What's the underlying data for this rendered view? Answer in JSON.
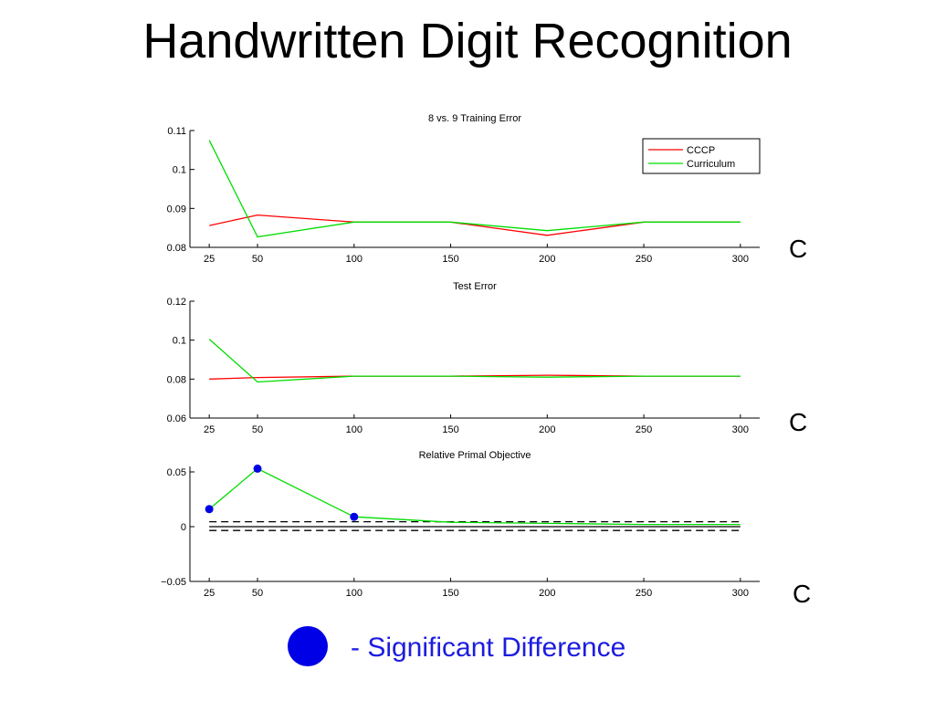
{
  "slide": {
    "title": "Handwritten Digit Recognition",
    "c_labels": [
      "C",
      "C",
      "C"
    ],
    "legend_note": "- Significant Difference",
    "legend_marker_color": "#0000e6"
  },
  "chart_data": [
    {
      "type": "line",
      "title": "8 vs. 9 Training Error",
      "x": [
        25,
        50,
        100,
        150,
        200,
        250,
        300
      ],
      "xticks": [
        "25",
        "50",
        "100",
        "150",
        "200",
        "250",
        "300"
      ],
      "ylim": [
        0.08,
        0.11
      ],
      "yticks": [
        "0.08",
        "0.09",
        "0.1",
        "0.11"
      ],
      "legend": {
        "placement": "top-right",
        "entries": [
          "CCCP",
          "Curriculum"
        ]
      },
      "series": [
        {
          "name": "CCCP",
          "color": "#ff0000",
          "values": [
            0.0856,
            0.0883,
            0.0865,
            0.0865,
            0.0831,
            0.0865,
            0.0865
          ]
        },
        {
          "name": "Curriculum",
          "color": "#00dd00",
          "values": [
            0.1075,
            0.0827,
            0.0865,
            0.0865,
            0.0843,
            0.0865,
            0.0865
          ]
        }
      ]
    },
    {
      "type": "line",
      "title": "Test Error",
      "x": [
        25,
        50,
        100,
        150,
        200,
        250,
        300
      ],
      "xticks": [
        "25",
        "50",
        "100",
        "150",
        "200",
        "250",
        "300"
      ],
      "ylim": [
        0.06,
        0.12
      ],
      "yticks": [
        "0.06",
        "0.08",
        "0.1",
        "0.12"
      ],
      "series": [
        {
          "color": "#ff0000",
          "values": [
            0.08,
            0.0808,
            0.0815,
            0.0815,
            0.082,
            0.0815,
            0.0815
          ]
        },
        {
          "color": "#00dd00",
          "values": [
            0.1005,
            0.0785,
            0.0815,
            0.0815,
            0.081,
            0.0815,
            0.0815
          ]
        }
      ]
    },
    {
      "type": "line",
      "title": "Relative Primal Objective",
      "x": [
        25,
        50,
        100,
        150,
        200,
        250,
        300
      ],
      "xticks": [
        "25",
        "50",
        "100",
        "150",
        "200",
        "250",
        "300"
      ],
      "ylim": [
        -0.05,
        0.055
      ],
      "yticks": [
        "−0.05",
        "0",
        "0.05"
      ],
      "series": [
        {
          "color": "#00dd00",
          "values": [
            0.016,
            0.053,
            0.009,
            0.004,
            0.003,
            0.002,
            0.002
          ]
        }
      ],
      "significant_points": [
        {
          "x": 25,
          "y": 0.016
        },
        {
          "x": 50,
          "y": 0.053
        },
        {
          "x": 100,
          "y": 0.009
        }
      ],
      "reference_lines": [
        {
          "y": 0.0045,
          "style": "dashed"
        },
        {
          "y": 0.0,
          "style": "solid"
        },
        {
          "y": -0.0035,
          "style": "dashed"
        }
      ]
    }
  ]
}
